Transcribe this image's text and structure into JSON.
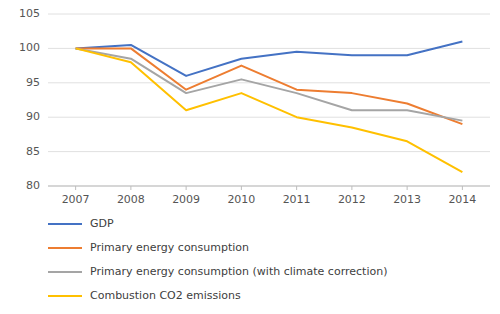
{
  "chart_data": {
    "type": "line",
    "x": [
      2007,
      2008,
      2009,
      2010,
      2011,
      2012,
      2013,
      2014
    ],
    "series": [
      {
        "name": "GDP",
        "color": "#4472C4",
        "values": [
          100.0,
          100.5,
          96.0,
          98.5,
          99.5,
          99.0,
          99.0,
          101.0
        ]
      },
      {
        "name": "Primary energy consumption",
        "color": "#ED7D31",
        "values": [
          100.0,
          100.0,
          94.0,
          97.5,
          94.0,
          93.5,
          92.0,
          89.0
        ]
      },
      {
        "name": "Primary energy consumption (with climate correction)",
        "color": "#A5A5A5",
        "values": [
          100.0,
          98.5,
          93.5,
          95.5,
          93.5,
          91.0,
          91.0,
          89.5
        ]
      },
      {
        "name": "Combustion CO2 emissions",
        "color": "#FFC000",
        "values": [
          100.0,
          98.0,
          91.0,
          93.5,
          90.0,
          88.5,
          86.5,
          82.0
        ]
      }
    ],
    "xlim": [
      2006.5,
      2014.5
    ],
    "xticks": [
      2007,
      2008,
      2009,
      2010,
      2011,
      2012,
      2013,
      2014
    ],
    "ylim": [
      80,
      105
    ],
    "yticks": [
      80,
      85,
      90,
      95,
      100,
      105
    ],
    "grid": true,
    "legend": "bottom"
  }
}
